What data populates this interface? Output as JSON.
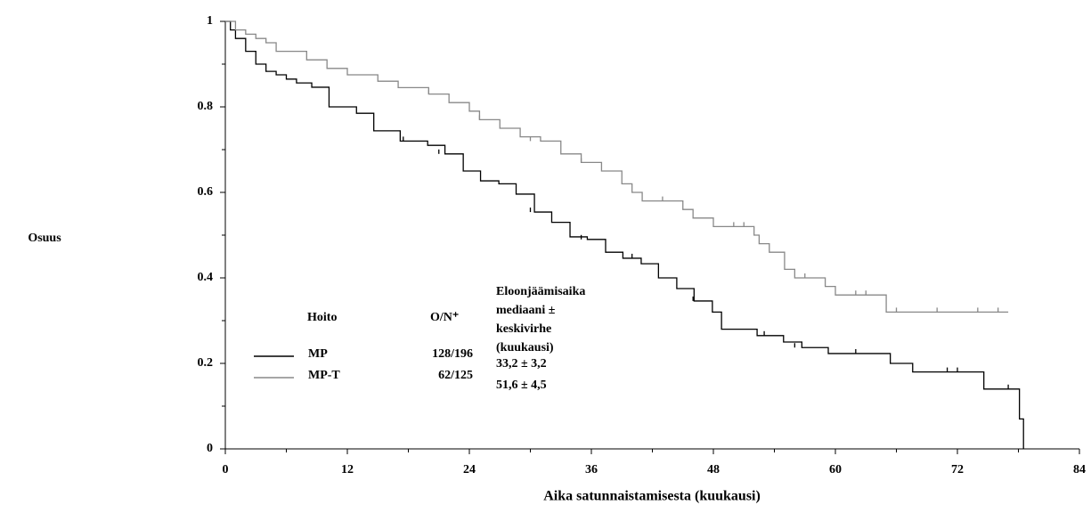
{
  "chart_data": {
    "type": "step",
    "xlabel": "Aika satunnaistamisesta (kuukausi)",
    "ylabel": "Osuus",
    "xlim": [
      0,
      84
    ],
    "xticks": [
      0,
      12,
      24,
      36,
      48,
      60,
      72,
      84
    ],
    "ylim": [
      0,
      1
    ],
    "yticks": [
      0,
      {
        "value": 0.2,
        "label": "0.2"
      },
      {
        "value": 0.4,
        "label": "0.4"
      },
      {
        "value": 0.6,
        "label": "0.6"
      },
      {
        "value": 0.8,
        "label": "0.8"
      },
      1
    ],
    "series": [
      {
        "name": "MP",
        "color": "#000000",
        "x": [
          0,
          0.5,
          1,
          2,
          3,
          4,
          5,
          6,
          7,
          8.5,
          10.2,
          12.9,
          14.6,
          17.2,
          19.9,
          21.6,
          23.4,
          25.1,
          26.9,
          28.6,
          30.4,
          32.1,
          33.9,
          35.6,
          37.4,
          39.1,
          40.9,
          42.6,
          44.4,
          46.1,
          47.9,
          48.8,
          52.3,
          54.9,
          56.7,
          59.3,
          65.4,
          67.6,
          74.6,
          78.1,
          78.5
        ],
        "values": [
          1,
          0.98,
          0.96,
          0.93,
          0.9,
          0.883,
          0.875,
          0.865,
          0.856,
          0.846,
          0.8,
          0.785,
          0.744,
          0.72,
          0.71,
          0.69,
          0.65,
          0.627,
          0.62,
          0.596,
          0.554,
          0.53,
          0.496,
          0.49,
          0.46,
          0.446,
          0.433,
          0.4,
          0.375,
          0.346,
          0.32,
          0.28,
          0.265,
          0.25,
          0.237,
          0.223,
          0.2,
          0.18,
          0.14,
          0.07,
          0
        ],
        "censored_x": [
          17.5,
          21,
          30,
          35,
          40,
          46,
          53,
          56,
          62,
          71,
          72,
          77
        ],
        "censored_y": [
          0.72,
          0.69,
          0.554,
          0.49,
          0.446,
          0.346,
          0.265,
          0.237,
          0.223,
          0.18,
          0.18,
          0.14
        ]
      },
      {
        "name": "MP-T",
        "color": "#888888",
        "x": [
          0,
          1,
          2,
          3,
          4,
          5,
          8,
          10,
          12,
          15,
          17,
          20,
          22,
          24,
          25,
          27,
          29,
          31,
          33,
          35,
          37,
          39,
          40,
          41,
          45,
          46,
          48,
          52,
          52.5,
          53.5,
          55,
          56,
          59,
          60,
          65,
          77
        ],
        "values": [
          1,
          0.98,
          0.97,
          0.96,
          0.95,
          0.93,
          0.91,
          0.89,
          0.875,
          0.86,
          0.845,
          0.83,
          0.81,
          0.79,
          0.77,
          0.75,
          0.73,
          0.72,
          0.69,
          0.67,
          0.65,
          0.62,
          0.6,
          0.58,
          0.56,
          0.54,
          0.52,
          0.5,
          0.48,
          0.46,
          0.42,
          0.4,
          0.38,
          0.36,
          0.32,
          0.32
        ],
        "censored_x": [
          20,
          25,
          30,
          35,
          43,
          50,
          51,
          57,
          62,
          63,
          66,
          70,
          74,
          76
        ],
        "censored_y": [
          0.83,
          0.77,
          0.72,
          0.67,
          0.58,
          0.52,
          0.52,
          0.4,
          0.36,
          0.36,
          0.32,
          0.32,
          0.32,
          0.32
        ]
      }
    ],
    "legend_table": {
      "headers": [
        "Hoito",
        "O/N⁺",
        [
          "Eloonjäämisaika",
          "mediaani ±",
          "keskivirhe",
          "(kuukausi)"
        ]
      ],
      "rows": [
        [
          "128/196",
          "33,2 ± 3,2"
        ],
        [
          "62/125",
          "51,6 ± 4,5"
        ]
      ]
    }
  }
}
